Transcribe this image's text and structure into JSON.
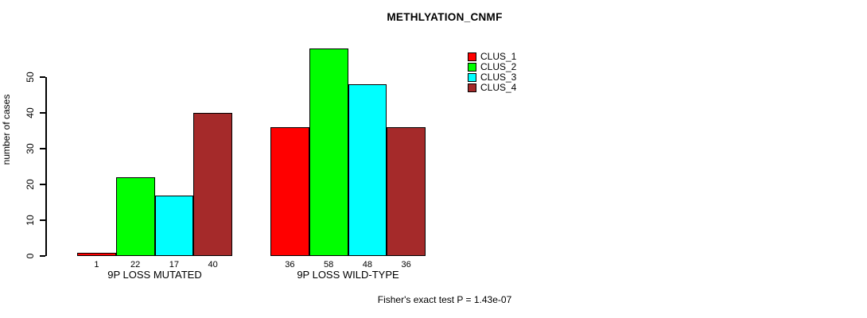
{
  "title": "METHLYATION_CNMF",
  "chart_data": {
    "type": "bar",
    "title": "METHLYATION_CNMF",
    "xlabel": "",
    "ylabel": "number of cases",
    "yticks": [
      0,
      10,
      20,
      30,
      40,
      50
    ],
    "ylim": [
      0,
      58
    ],
    "grid": false,
    "legend_position": "top-right",
    "categories": [
      "9P LOSS MUTATED",
      "9P LOSS WILD-TYPE"
    ],
    "series": [
      {
        "name": "CLUS_1",
        "color": "#ff0000",
        "values": [
          1,
          36
        ]
      },
      {
        "name": "CLUS_2",
        "color": "#00ff00",
        "values": [
          22,
          58
        ]
      },
      {
        "name": "CLUS_3",
        "color": "#00ffff",
        "values": [
          17,
          48
        ]
      },
      {
        "name": "CLUS_4",
        "color": "#a52a2a",
        "values": [
          40,
          36
        ]
      }
    ],
    "bar_labels": [
      [
        "1",
        "22",
        "17",
        "40"
      ],
      [
        "36",
        "58",
        "48",
        "36"
      ]
    ],
    "annotation": "Fisher's exact test P = 1.43e-07"
  }
}
